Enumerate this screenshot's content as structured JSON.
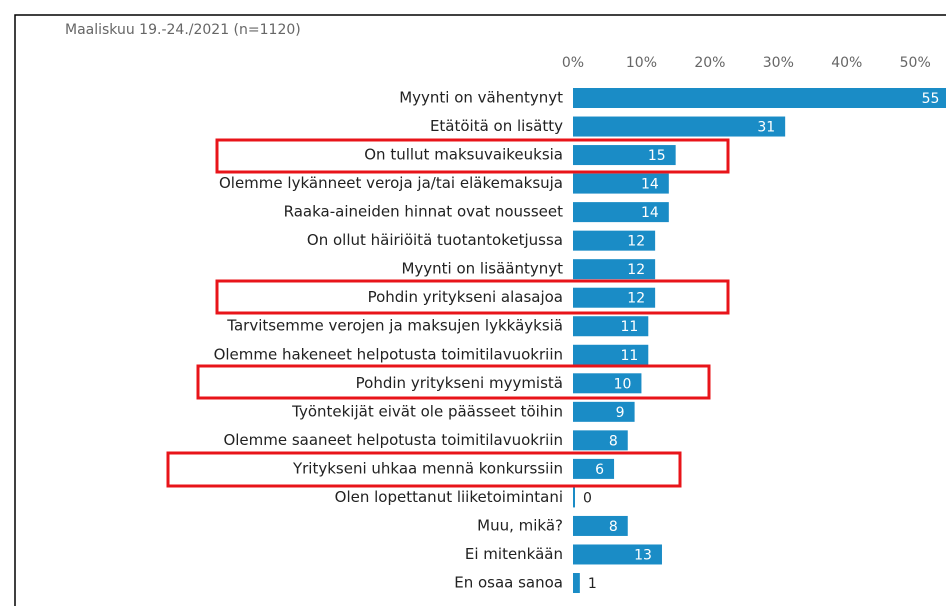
{
  "chart_data": {
    "type": "bar",
    "orientation": "horizontal",
    "subtitle": "Maaliskuu 19.-24./2021 (n=1120)",
    "categories": [
      "Myynti on vähentynyt",
      "Etätöitä on lisätty",
      "On tullut maksuvaikeuksia",
      "Olemme lykänneet veroja ja/tai eläkemaksuja",
      "Raaka-aineiden hinnat ovat nousseet",
      "On ollut häiriöitä tuotantoketjussa",
      "Myynti on lisääntynyt",
      "Pohdin yritykseni alasajoa",
      "Tarvitsemme verojen ja maksujen lykkäyksiä",
      "Olemme hakeneet helpotusta toimitilavuokriin",
      "Pohdin yritykseni myymistä",
      "Työntekijät eivät ole päässeet töihin",
      "Olemme saaneet helpotusta toimitilavuokriin",
      "Yritykseni uhkaa mennä konkurssiin",
      "Olen lopettanut liiketoimintani",
      "Muu, mikä?",
      "Ei mitenkään",
      "En osaa sanoa"
    ],
    "values": [
      55,
      31,
      15,
      14,
      14,
      12,
      12,
      12,
      11,
      11,
      10,
      9,
      8,
      6,
      0,
      8,
      13,
      1
    ],
    "color": "#1a8cc6",
    "xlim": [
      0,
      54.5
    ],
    "xticks": [
      {
        "value": 0,
        "label": "0%"
      },
      {
        "value": 10,
        "label": "10%"
      },
      {
        "value": 20,
        "label": "20%"
      },
      {
        "value": 30,
        "label": "30%"
      },
      {
        "value": 40,
        "label": "40%"
      },
      {
        "value": 50,
        "label": "50%"
      }
    ],
    "grid": false
  }
}
